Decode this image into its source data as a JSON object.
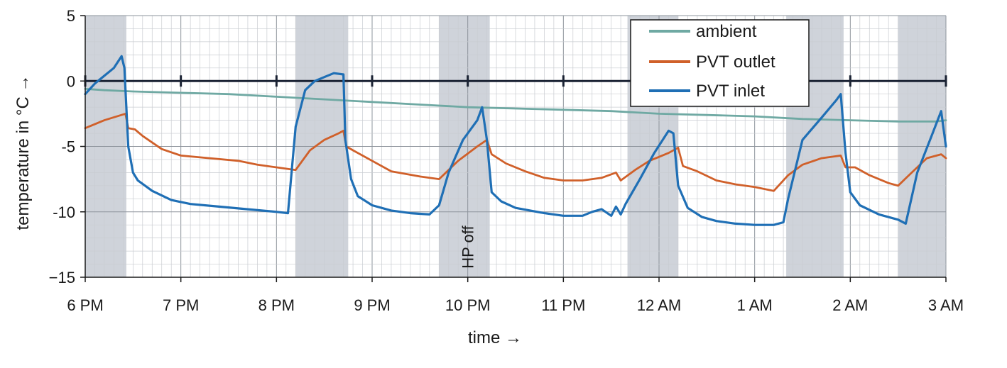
{
  "chart_data": {
    "type": "line",
    "xlabel": "time →",
    "ylabel": "temperature in °C →",
    "ylim": [
      -15,
      5
    ],
    "xlim": [
      18,
      27
    ],
    "y_ticks": [
      "5",
      "0",
      "-5",
      "-10",
      "−15"
    ],
    "y_tick_values": [
      5,
      0,
      -5,
      -10,
      -15
    ],
    "x_ticks": [
      "6 PM",
      "7 PM",
      "8 PM",
      "9 PM",
      "10 PM",
      "11 PM",
      "12 AM",
      "1 AM",
      "2 AM",
      "3 AM"
    ],
    "x_tick_values": [
      18,
      19,
      20,
      21,
      22,
      23,
      24,
      25,
      26,
      27
    ],
    "x_unit": "hours since 0:00 of first day",
    "grid": true,
    "legend_position": "top-right",
    "shaded_periods": [
      [
        18.0,
        18.43
      ],
      [
        20.2,
        20.75
      ],
      [
        21.7,
        22.23
      ],
      [
        23.67,
        24.2
      ],
      [
        25.33,
        25.93
      ],
      [
        26.5,
        27.0
      ]
    ],
    "annotations": [
      {
        "text": "HP off",
        "x": 22.0,
        "y": -12.7
      }
    ],
    "series": [
      {
        "name": "ambient",
        "color": "#6fa9a3",
        "x": [
          18.0,
          18.2,
          18.5,
          19.0,
          19.5,
          20.0,
          20.5,
          21.0,
          21.5,
          22.0,
          22.5,
          23.0,
          23.5,
          24.0,
          24.5,
          25.0,
          25.5,
          26.0,
          26.5,
          26.9,
          27.0
        ],
        "y": [
          -0.6,
          -0.7,
          -0.8,
          -0.9,
          -1.0,
          -1.2,
          -1.4,
          -1.6,
          -1.8,
          -2.0,
          -2.1,
          -2.2,
          -2.3,
          -2.5,
          -2.6,
          -2.7,
          -2.9,
          -3.0,
          -3.1,
          -3.1,
          -3.0
        ]
      },
      {
        "name": "PVT outlet",
        "color": "#d0602a",
        "x": [
          18.0,
          18.2,
          18.42,
          18.45,
          18.52,
          18.6,
          18.8,
          19.0,
          19.3,
          19.6,
          19.8,
          20.0,
          20.2,
          20.35,
          20.5,
          20.65,
          20.7,
          20.73,
          20.8,
          21.0,
          21.2,
          21.5,
          21.7,
          21.9,
          22.1,
          22.2,
          22.25,
          22.4,
          22.6,
          22.8,
          23.0,
          23.2,
          23.4,
          23.55,
          23.6,
          23.75,
          23.9,
          24.1,
          24.2,
          24.25,
          24.4,
          24.6,
          24.8,
          25.0,
          25.2,
          25.35,
          25.5,
          25.7,
          25.9,
          25.95,
          26.05,
          26.2,
          26.4,
          26.5,
          26.6,
          26.8,
          26.95,
          27.0
        ],
        "y": [
          -3.6,
          -3.0,
          -2.5,
          -3.6,
          -3.7,
          -4.2,
          -5.2,
          -5.7,
          -5.9,
          -6.1,
          -6.4,
          -6.6,
          -6.8,
          -5.3,
          -4.5,
          -4.0,
          -3.8,
          -5.0,
          -5.3,
          -6.1,
          -6.9,
          -7.3,
          -7.5,
          -6.1,
          -5.0,
          -4.5,
          -5.6,
          -6.3,
          -6.9,
          -7.4,
          -7.6,
          -7.6,
          -7.4,
          -7.0,
          -7.6,
          -6.8,
          -6.1,
          -5.5,
          -5.1,
          -6.5,
          -6.9,
          -7.6,
          -7.9,
          -8.1,
          -8.4,
          -7.2,
          -6.4,
          -5.9,
          -5.7,
          -6.6,
          -6.6,
          -7.2,
          -7.8,
          -8.0,
          -7.3,
          -5.9,
          -5.6,
          -5.9
        ]
      },
      {
        "name": "PVT inlet",
        "color": "#1f6fb5",
        "x": [
          18.0,
          18.1,
          18.2,
          18.3,
          18.38,
          18.41,
          18.45,
          18.5,
          18.55,
          18.7,
          18.9,
          19.1,
          19.4,
          19.7,
          20.0,
          20.12,
          20.2,
          20.3,
          20.4,
          20.5,
          20.6,
          20.7,
          20.72,
          20.78,
          20.85,
          21.0,
          21.2,
          21.4,
          21.6,
          21.7,
          21.8,
          21.95,
          22.1,
          22.15,
          22.2,
          22.25,
          22.35,
          22.5,
          22.8,
          23.0,
          23.2,
          23.3,
          23.4,
          23.5,
          23.55,
          23.6,
          23.65,
          23.8,
          23.95,
          24.1,
          24.15,
          24.2,
          24.3,
          24.45,
          24.6,
          24.8,
          25.0,
          25.2,
          25.3,
          25.35,
          25.5,
          25.7,
          25.85,
          25.9,
          25.95,
          26.0,
          26.1,
          26.3,
          26.5,
          26.58,
          26.7,
          26.85,
          26.95,
          27.0
        ],
        "y": [
          -1.0,
          -0.2,
          0.4,
          1.0,
          1.9,
          1.0,
          -5.0,
          -7.0,
          -7.6,
          -8.4,
          -9.1,
          -9.4,
          -9.6,
          -9.8,
          -10.0,
          -10.1,
          -3.5,
          -0.7,
          0.0,
          0.3,
          0.6,
          0.5,
          -4.5,
          -7.5,
          -8.8,
          -9.5,
          -9.9,
          -10.1,
          -10.2,
          -9.5,
          -7.0,
          -4.5,
          -3.0,
          -2.0,
          -4.5,
          -8.5,
          -9.2,
          -9.7,
          -10.1,
          -10.3,
          -10.3,
          -10.0,
          -9.8,
          -10.3,
          -9.6,
          -10.2,
          -9.4,
          -7.5,
          -5.5,
          -3.8,
          -4.0,
          -8.0,
          -9.7,
          -10.4,
          -10.7,
          -10.9,
          -11.0,
          -11.0,
          -10.8,
          -9.0,
          -4.5,
          -2.8,
          -1.5,
          -1.0,
          -5.5,
          -8.5,
          -9.5,
          -10.2,
          -10.6,
          -10.9,
          -7.0,
          -4.2,
          -2.3,
          -5.0
        ]
      }
    ]
  }
}
